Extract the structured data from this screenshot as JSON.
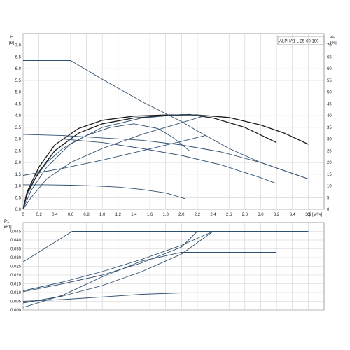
{
  "title": "ALPHA1 L 25-60 180",
  "colors": {
    "head": "#1b1b1b",
    "blue": "#2f4f6f",
    "grid": "#cfcfcf"
  },
  "chart_data": [
    {
      "type": "line",
      "id": "head",
      "ylabel": "H",
      "yunit": "[м]",
      "y2label": "eta",
      "y2unit": "[%]",
      "xlabel": "Q",
      "xunit": "[м³/ч]",
      "xlim": [
        0,
        3.8
      ],
      "ylim": [
        0,
        7.5
      ],
      "y2lim": [
        0,
        75
      ],
      "grid": true,
      "xticks": [
        "0",
        "0,2",
        "0,4",
        "0,6",
        "0,8",
        "1,0",
        "1,2",
        "1,4",
        "1,6",
        "1,8",
        "2,0",
        "2,2",
        "2,4",
        "2,6",
        "2,8",
        "3,0",
        "3,2",
        "3,4",
        "3,6"
      ],
      "yticks": [
        "0.0",
        "0.5",
        "1.0",
        "1.5",
        "2.0",
        "2.5",
        "3.0",
        "3.5",
        "4.0",
        "4.5",
        "5.0",
        "5.5",
        "6.0",
        "6.5",
        "7.0"
      ],
      "y2ticks": [
        "0",
        "5",
        "10",
        "15",
        "20",
        "25",
        "30",
        "35",
        "40",
        "45",
        "50",
        "55",
        "60",
        "65",
        "70"
      ],
      "series": [
        {
          "kind": "head",
          "color": "#2f4f6f",
          "x": [
            0,
            0.05,
            0.15,
            0.3,
            0.5,
            0.8,
            1.1,
            1.4,
            1.7,
            1.9,
            2.1
          ],
          "y": [
            0,
            0.6,
            1.3,
            2.0,
            2.6,
            3.15,
            3.5,
            3.65,
            3.45,
            3.05,
            2.5
          ]
        },
        {
          "kind": "head",
          "color": "#1b1b1b",
          "x": [
            0,
            0.05,
            0.2,
            0.4,
            0.7,
            1.0,
            1.4,
            1.8,
            2.1,
            2.4,
            2.8,
            3.2
          ],
          "y": [
            0,
            0.7,
            1.6,
            2.5,
            3.25,
            3.65,
            3.9,
            4.0,
            4.05,
            3.9,
            3.5,
            2.85
          ]
        },
        {
          "kind": "head",
          "color": "#1b1b1b",
          "x": [
            0,
            0.05,
            0.2,
            0.4,
            0.7,
            1.0,
            1.4,
            1.8,
            2.2,
            2.6,
            3.0,
            3.3,
            3.6
          ],
          "y": [
            0,
            0.75,
            1.8,
            2.75,
            3.45,
            3.8,
            3.98,
            4.03,
            4.03,
            3.92,
            3.6,
            3.25,
            2.78
          ]
        },
        {
          "kind": "head",
          "color": "#2f4f6f",
          "x": [
            0,
            0.1,
            0.3,
            0.6,
            1.0,
            1.5,
            2.0,
            2.3
          ],
          "y": [
            0,
            0.8,
            1.8,
            2.8,
            3.5,
            3.9,
            4.05,
            4.0
          ]
        },
        {
          "kind": "head",
          "color": "#2f4f6f",
          "x": [
            0,
            0.1,
            0.3,
            0.6,
            1.0,
            1.5,
            2.0,
            2.3
          ],
          "y": [
            0,
            0.5,
            1.3,
            2.0,
            2.6,
            3.2,
            3.7,
            4.0
          ]
        },
        {
          "kind": "head",
          "color": "#2f4f6f",
          "x": [
            0,
            0.2,
            0.4,
            0.6,
            1.0,
            1.5,
            2.0,
            2.2,
            2.6,
            3.0,
            3.6
          ],
          "y": [
            6.35,
            6.35,
            6.35,
            6.35,
            5.55,
            4.6,
            3.75,
            3.35,
            2.6,
            2.0,
            1.3
          ]
        },
        {
          "kind": "head",
          "color": "#2f4f6f",
          "x": [
            0,
            0.5,
            1.0,
            1.5,
            2.0,
            2.5,
            3.0,
            3.6
          ],
          "y": [
            3.2,
            3.15,
            3.05,
            2.95,
            2.75,
            2.45,
            2.0,
            1.3
          ]
        },
        {
          "kind": "head",
          "color": "#2f4f6f",
          "x": [
            0,
            0.5,
            1.0,
            1.5,
            2.0,
            2.5,
            3.0,
            3.2
          ],
          "y": [
            3.0,
            3.0,
            2.85,
            2.6,
            2.3,
            1.9,
            1.35,
            1.1
          ]
        },
        {
          "kind": "head",
          "color": "#2f4f6f",
          "x": [
            0,
            0.5,
            1.0,
            1.5,
            2.0,
            2.3
          ],
          "y": [
            1.45,
            1.75,
            2.1,
            2.5,
            2.9,
            3.15
          ]
        },
        {
          "kind": "head",
          "color": "#2f4f6f",
          "x": [
            0,
            0.3,
            0.6,
            0.9,
            1.2,
            1.5,
            1.8,
            2.05
          ],
          "y": [
            1.05,
            1.05,
            1.03,
            1.0,
            0.95,
            0.85,
            0.7,
            0.45
          ]
        }
      ]
    },
    {
      "type": "line",
      "id": "power",
      "ylabel": "P1",
      "yunit": "[кВт]",
      "xlim": [
        0,
        3.8
      ],
      "ylim": [
        0,
        0.05
      ],
      "grid": true,
      "yticks": [
        "0.000",
        "0.005",
        "0.010",
        "0.015",
        "0.020",
        "0.025",
        "0.030",
        "0.035",
        "0.040",
        "0.045"
      ],
      "series": [
        {
          "color": "#2f4f6f",
          "x": [
            0,
            0.62,
            0.62,
            3.6
          ],
          "y": [
            0.0275,
            0.045,
            0.045,
            0.045
          ]
        },
        {
          "color": "#2f4f6f",
          "x": [
            0,
            0.5,
            1.0,
            1.5,
            2.0,
            2.4,
            3.6
          ],
          "y": [
            0.011,
            0.016,
            0.022,
            0.029,
            0.037,
            0.045,
            0.045
          ]
        },
        {
          "color": "#2f4f6f",
          "x": [
            0,
            0.5,
            1.0,
            1.5,
            2.0,
            2.2,
            3.6
          ],
          "y": [
            0.0105,
            0.015,
            0.02,
            0.027,
            0.036,
            0.045,
            0.045
          ]
        },
        {
          "color": "#2f4f6f",
          "x": [
            0,
            0.5,
            1.0,
            1.5,
            2.0,
            2.4,
            3.6
          ],
          "y": [
            0.004,
            0.008,
            0.014,
            0.022,
            0.032,
            0.045,
            0.045
          ]
        },
        {
          "color": "#2f4f6f",
          "x": [
            0,
            0.5,
            1.0,
            1.5,
            2.0,
            3.2
          ],
          "y": [
            0.0015,
            0.0085,
            0.019,
            0.028,
            0.033,
            0.033
          ]
        },
        {
          "color": "#2f4f6f",
          "x": [
            0,
            0.5,
            1.0,
            1.5,
            2.0,
            2.05
          ],
          "y": [
            0.005,
            0.006,
            0.0075,
            0.009,
            0.0098,
            0.0098
          ]
        }
      ]
    }
  ]
}
